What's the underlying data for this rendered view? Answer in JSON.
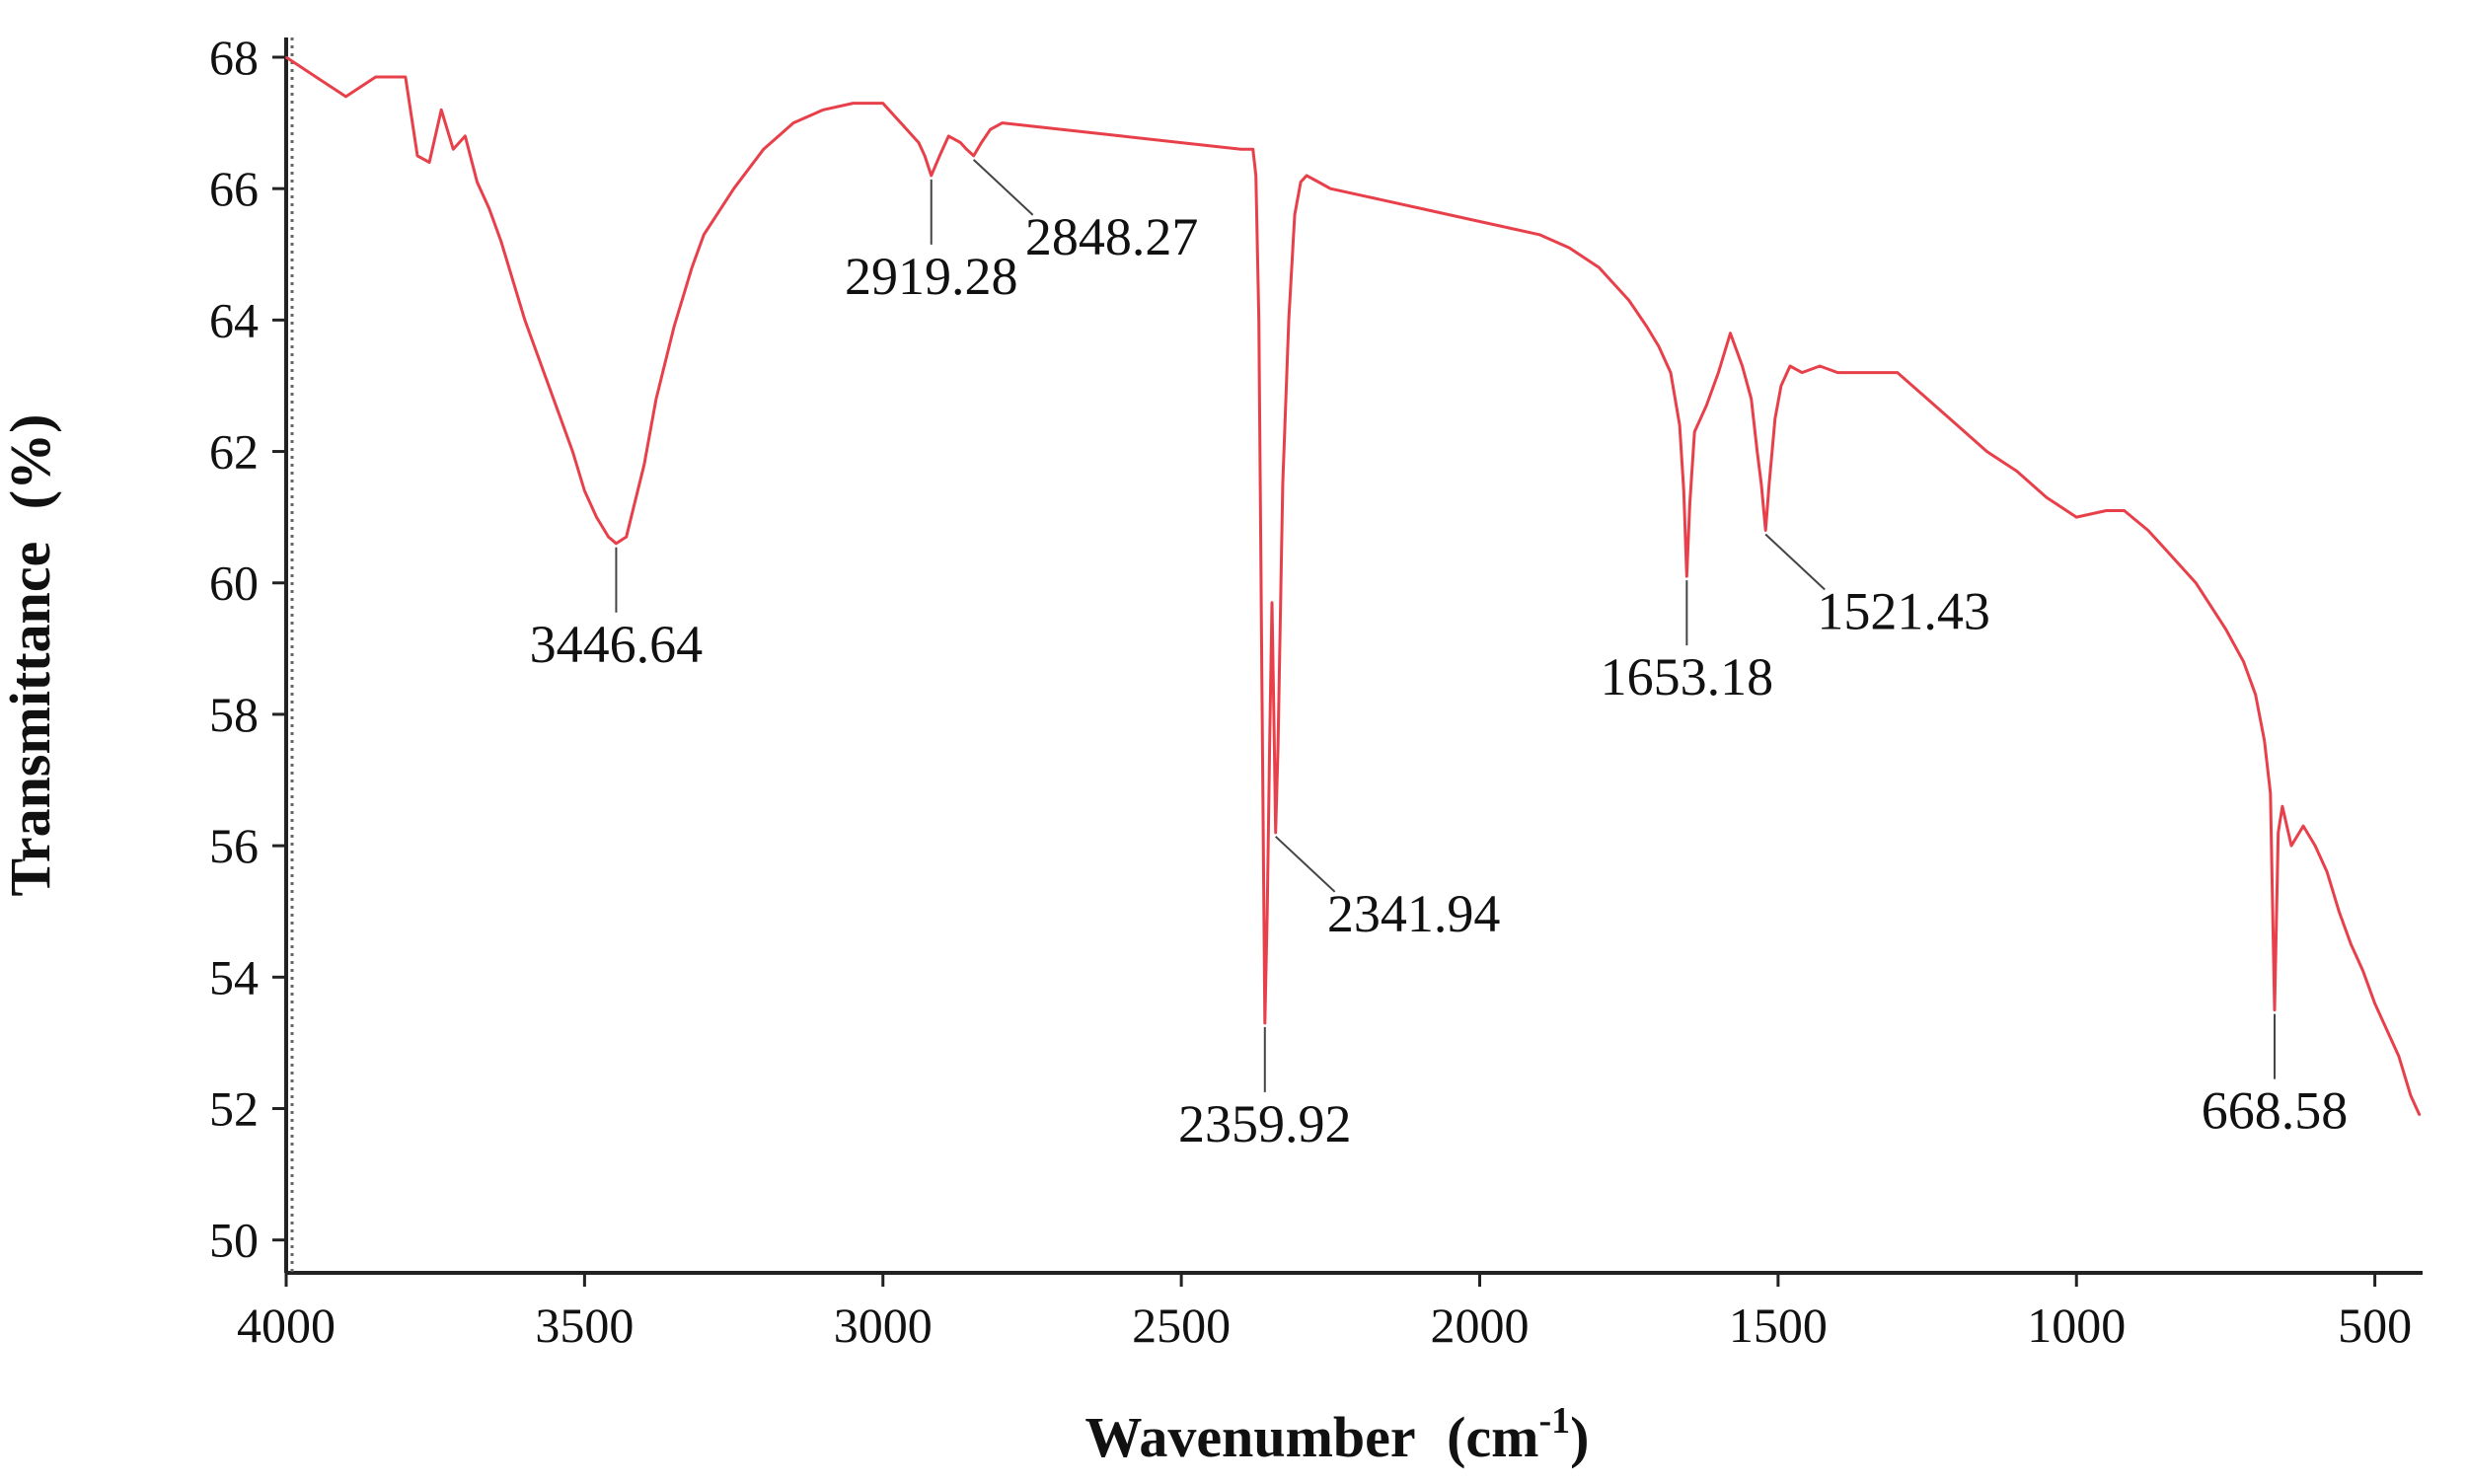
{
  "chart_data": {
    "type": "line",
    "xlabel": "Wavenumber",
    "xlabel_unit_base": "cm",
    "xlabel_unit_exp": "-1",
    "ylabel": "Transmittance",
    "ylabel_unit": "(%)",
    "xlim": [
      4000,
      420
    ],
    "ylim": [
      49.5,
      68.3
    ],
    "x_axis_reversed": true,
    "grid": false,
    "legend": "none",
    "x_ticks": [
      {
        "value": 4000,
        "label": "4000"
      },
      {
        "value": 3500,
        "label": "3500"
      },
      {
        "value": 3000,
        "label": "3000"
      },
      {
        "value": 2500,
        "label": "2500"
      },
      {
        "value": 2000,
        "label": "2000"
      },
      {
        "value": 1500,
        "label": "1500"
      },
      {
        "value": 1000,
        "label": "1000"
      },
      {
        "value": 500,
        "label": "500"
      }
    ],
    "y_ticks": [
      {
        "value": 68,
        "label": "68"
      },
      {
        "value": 66,
        "label": "66"
      },
      {
        "value": 64,
        "label": "64"
      },
      {
        "value": 62,
        "label": "62"
      },
      {
        "value": 60,
        "label": "60"
      },
      {
        "value": 58,
        "label": "58"
      },
      {
        "value": 56,
        "label": "56"
      },
      {
        "value": 54,
        "label": "54"
      },
      {
        "value": 52,
        "label": "52"
      },
      {
        "value": 50,
        "label": "50"
      }
    ],
    "series": [
      {
        "color": "#e8404a",
        "x": [
          4000,
          3950,
          3900,
          3850,
          3800,
          3780,
          3760,
          3740,
          3720,
          3700,
          3680,
          3660,
          3640,
          3620,
          3600,
          3580,
          3560,
          3540,
          3520,
          3500,
          3480,
          3460,
          3447,
          3430,
          3400,
          3380,
          3350,
          3320,
          3300,
          3250,
          3200,
          3150,
          3100,
          3050,
          3000,
          2970,
          2940,
          2930,
          2919,
          2905,
          2890,
          2870,
          2860,
          2848,
          2835,
          2820,
          2800,
          2700,
          2600,
          2500,
          2400,
          2380,
          2375,
          2370,
          2365,
          2360,
          2356,
          2352,
          2348,
          2345,
          2342,
          2338,
          2334,
          2330,
          2320,
          2310,
          2300,
          2290,
          2270,
          2250,
          2200,
          2100,
          2000,
          1950,
          1900,
          1850,
          1800,
          1750,
          1720,
          1700,
          1680,
          1665,
          1658,
          1653,
          1648,
          1640,
          1620,
          1600,
          1580,
          1560,
          1545,
          1535,
          1528,
          1521,
          1515,
          1505,
          1495,
          1480,
          1460,
          1430,
          1400,
          1350,
          1300,
          1250,
          1200,
          1150,
          1100,
          1050,
          1000,
          950,
          920,
          880,
          850,
          800,
          750,
          720,
          700,
          685,
          675,
          668,
          662,
          655,
          640,
          620,
          600,
          580,
          560,
          540,
          520,
          500,
          480,
          460,
          440,
          425
        ],
        "y": [
          68.0,
          67.7,
          67.4,
          67.7,
          67.7,
          66.5,
          66.4,
          67.2,
          66.6,
          66.8,
          66.1,
          65.7,
          65.2,
          64.6,
          64.0,
          63.5,
          63.0,
          62.5,
          62.0,
          61.4,
          61.0,
          60.7,
          60.6,
          60.7,
          61.8,
          62.8,
          63.9,
          64.8,
          65.3,
          66.0,
          66.6,
          67.0,
          67.2,
          67.3,
          67.3,
          67.0,
          66.7,
          66.5,
          66.2,
          66.5,
          66.8,
          66.7,
          66.6,
          66.5,
          66.7,
          66.9,
          67.0,
          66.9,
          66.8,
          66.7,
          66.6,
          66.6,
          66.2,
          64.0,
          58.5,
          53.3,
          55.0,
          57.5,
          59.7,
          58.0,
          56.2,
          57.5,
          59.5,
          61.5,
          64.0,
          65.6,
          66.1,
          66.2,
          66.1,
          66.0,
          65.9,
          65.7,
          65.5,
          65.4,
          65.3,
          65.1,
          64.8,
          64.3,
          63.9,
          63.6,
          63.2,
          62.4,
          61.4,
          60.1,
          61.2,
          62.3,
          62.7,
          63.2,
          63.8,
          63.3,
          62.8,
          62.0,
          61.5,
          60.8,
          61.5,
          62.5,
          63.0,
          63.3,
          63.2,
          63.3,
          63.2,
          63.2,
          63.2,
          62.8,
          62.4,
          62.0,
          61.7,
          61.3,
          61.0,
          61.1,
          61.1,
          60.8,
          60.5,
          60.0,
          59.3,
          58.8,
          58.3,
          57.6,
          56.8,
          53.5,
          56.2,
          56.6,
          56.0,
          56.3,
          56.0,
          55.6,
          55.0,
          54.5,
          54.1,
          53.6,
          53.2,
          52.8,
          52.2,
          51.9
        ]
      }
    ],
    "annotations": [
      {
        "text": "3446.64",
        "peak_x": 3447,
        "peak_y": 60.6,
        "anchor": "below"
      },
      {
        "text": "2919.28",
        "peak_x": 2919,
        "peak_y": 66.2,
        "anchor": "below"
      },
      {
        "text": "2848.27",
        "peak_x": 2848,
        "peak_y": 66.5,
        "anchor": "below-right"
      },
      {
        "text": "2359.92",
        "peak_x": 2360,
        "peak_y": 53.3,
        "anchor": "below"
      },
      {
        "text": "2341.94",
        "peak_x": 2342,
        "peak_y": 56.2,
        "anchor": "below-right"
      },
      {
        "text": "1653.18",
        "peak_x": 1653,
        "peak_y": 60.1,
        "anchor": "below"
      },
      {
        "text": "1521.43",
        "peak_x": 1521,
        "peak_y": 60.8,
        "anchor": "below-right"
      },
      {
        "text": "668.58",
        "peak_x": 668,
        "peak_y": 53.5,
        "anchor": "below"
      }
    ]
  }
}
